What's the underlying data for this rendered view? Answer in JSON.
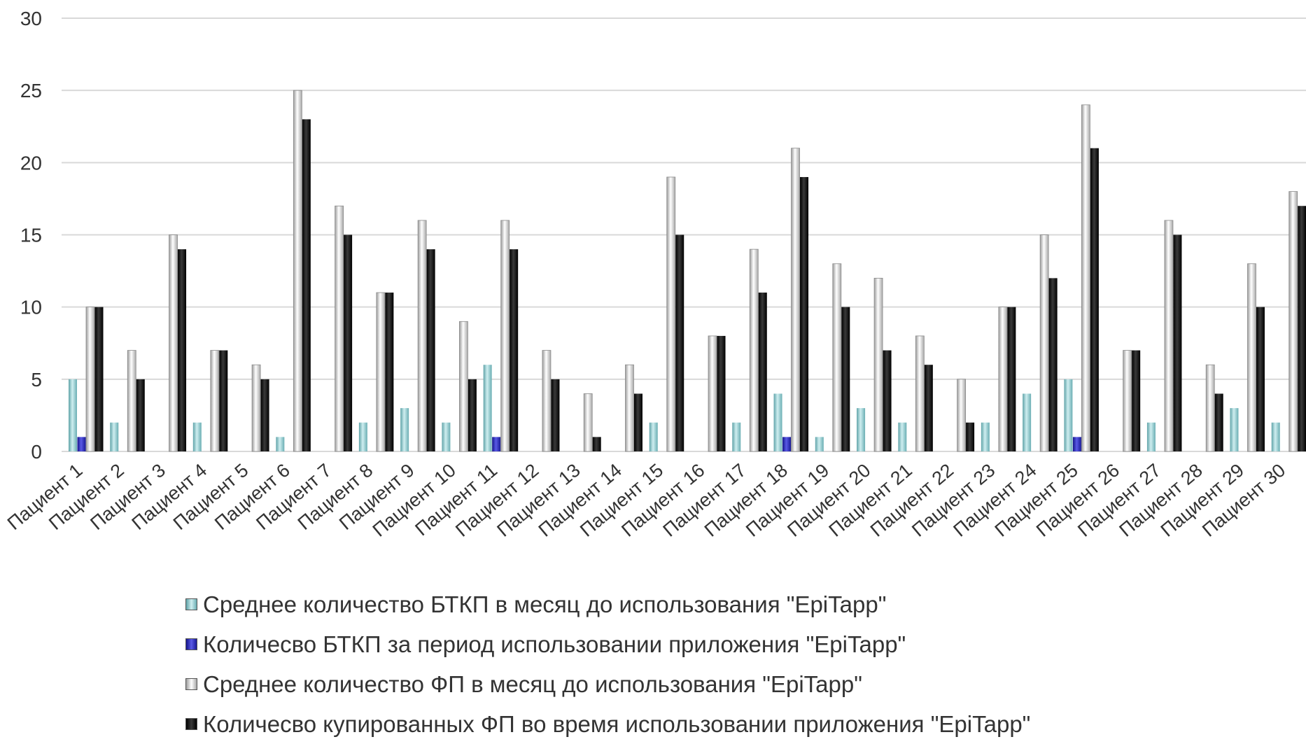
{
  "chart_data": {
    "type": "bar",
    "categories": [
      "Пациент 1",
      "Пациент 2",
      "Пациент 3",
      "Пациент 4",
      "Пациент 5",
      "Пациент 6",
      "Пациент 7",
      "Пациент 8",
      "Пациент 9",
      "Пациент 10",
      "Пациент 11",
      "Пациент 12",
      "Пациент 13",
      "Пациент 14",
      "Пациент 15",
      "Пациент 16",
      "Пациент 17",
      "Пациент 18",
      "Пациент 19",
      "Пациент 20",
      "Пациент 21",
      "Пациент 22",
      "Пациент 23",
      "Пациент 24",
      "Пациент 25",
      "Пациент 26",
      "Пациент 27",
      "Пациент 28",
      "Пациент 29",
      "Пациент 30"
    ],
    "series": [
      {
        "name": "Среднее количество БТКП в месяц до использования \"EpiTapp\"",
        "color": "#8ec8cc",
        "values": [
          5,
          2,
          0,
          2,
          0,
          1,
          0,
          2,
          3,
          2,
          6,
          0,
          0,
          0,
          2,
          0,
          2,
          4,
          1,
          3,
          2,
          0,
          2,
          4,
          5,
          0,
          2,
          0,
          3,
          2
        ]
      },
      {
        "name": "Количесво БТКП за период использовании приложения \"EpiTapp\"",
        "color": "#2a2ab8",
        "values": [
          1,
          0,
          0,
          0,
          0,
          0,
          0,
          0,
          0,
          0,
          1,
          0,
          0,
          0,
          0,
          0,
          0,
          1,
          0,
          0,
          0,
          0,
          0,
          0,
          1,
          0,
          0,
          0,
          0,
          0
        ]
      },
      {
        "name": "Среднее количество ФП в месяц до использования \"EpiTapp\"",
        "color": "#e6e6e6",
        "values": [
          10,
          7,
          15,
          7,
          6,
          25,
          17,
          11,
          16,
          9,
          16,
          7,
          4,
          6,
          19,
          8,
          14,
          21,
          13,
          12,
          8,
          5,
          10,
          15,
          24,
          7,
          16,
          6,
          13,
          18
        ]
      },
      {
        "name": "Количесво купированных ФП во время использовании приложения \"EpiTapp\"",
        "color": "#111111",
        "values": [
          10,
          5,
          14,
          7,
          5,
          23,
          15,
          11,
          14,
          5,
          14,
          5,
          1,
          4,
          15,
          8,
          11,
          19,
          10,
          7,
          6,
          2,
          10,
          12,
          21,
          7,
          15,
          4,
          10,
          17
        ]
      }
    ],
    "ylim": [
      0,
      30
    ],
    "yticks": [
      0,
      5,
      10,
      15,
      20,
      25,
      30
    ],
    "grid": true,
    "legend_position": "bottom"
  }
}
